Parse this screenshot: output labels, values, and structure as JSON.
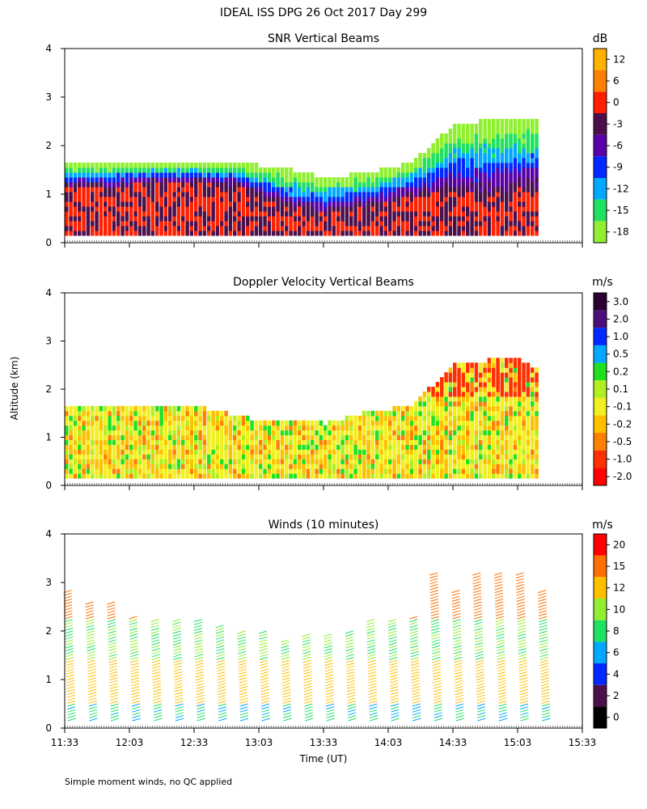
{
  "figure": {
    "title": "IDEAL ISS DPG  26 Oct 2017 Day 299",
    "ylabel": "Altitude (km)",
    "xlabel": "Time (UT)",
    "footnote": "Simple moment winds, no QC applied"
  },
  "chart_data": [
    {
      "type": "heatmap",
      "title": "SNR Vertical Beams",
      "ylabel": "Altitude (km)",
      "ylim": [
        0,
        4
      ],
      "yticks": [
        "0",
        "1",
        "2",
        "3",
        "4"
      ],
      "colorbar": {
        "unit": "dB",
        "labels": [
          "12",
          "6",
          "0",
          "-3",
          "-6",
          "-9",
          "-12",
          "-15",
          "-18"
        ],
        "colors": [
          "#ffb300",
          "#ff8000",
          "#ff2000",
          "#4b0f4b",
          "#5a00a8",
          "#0028ff",
          "#00a8ff",
          "#20e060",
          "#90f030"
        ]
      },
      "profiles": [
        {
          "time": "11:33",
          "top": 1.6,
          "core": 1.1
        },
        {
          "time": "11:53",
          "top": 1.6,
          "core": 1.1
        },
        {
          "time": "12:13",
          "top": 1.6,
          "core": 1.2
        },
        {
          "time": "12:33",
          "top": 1.6,
          "core": 1.2
        },
        {
          "time": "12:53",
          "top": 1.6,
          "core": 1.1
        },
        {
          "time": "13:13",
          "top": 1.5,
          "core": 0.7
        },
        {
          "time": "13:33",
          "top": 1.3,
          "core": 0.6
        },
        {
          "time": "13:53",
          "top": 1.4,
          "core": 0.7
        },
        {
          "time": "14:13",
          "top": 1.6,
          "core": 0.9
        },
        {
          "time": "14:33",
          "top": 2.4,
          "core": 1.0
        },
        {
          "time": "14:53",
          "top": 2.5,
          "core": 1.0
        },
        {
          "time": "15:13",
          "top": 2.5,
          "core": 1.1
        }
      ]
    },
    {
      "type": "heatmap",
      "title": "Doppler Velocity Vertical Beams",
      "ylabel": "Altitude (km)",
      "ylim": [
        0,
        4
      ],
      "yticks": [
        "0",
        "1",
        "2",
        "3",
        "4"
      ],
      "colorbar": {
        "unit": "m/s",
        "labels": [
          "3.0",
          "2.0",
          "1.0",
          "0.5",
          "0.2",
          "0.1",
          "-0.1",
          "-0.2",
          "-0.5",
          "-1.0",
          "-2.0"
        ],
        "colors": [
          "#2b0033",
          "#4b0f7b",
          "#0028ff",
          "#00a8ff",
          "#20e020",
          "#b0f020",
          "#f0f020",
          "#ffc000",
          "#ff8000",
          "#ff3000",
          "#ff0000"
        ]
      },
      "profiles": [
        {
          "time": "11:33",
          "top": 1.65
        },
        {
          "time": "12:03",
          "top": 1.65
        },
        {
          "time": "12:33",
          "top": 1.6
        },
        {
          "time": "13:03",
          "top": 1.3
        },
        {
          "time": "13:33",
          "top": 1.25
        },
        {
          "time": "13:53",
          "top": 1.5
        },
        {
          "time": "14:13",
          "top": 1.6
        },
        {
          "time": "14:33",
          "top": 2.5
        },
        {
          "time": "15:03",
          "top": 2.6
        },
        {
          "time": "15:13",
          "top": 2.3
        }
      ]
    },
    {
      "type": "scatter",
      "title": "Winds (10 minutes)",
      "ylabel": "Altitude (km)",
      "xlabel": "Time (UT)",
      "ylim": [
        0,
        4
      ],
      "yticks": [
        "0",
        "1",
        "2",
        "3",
        "4"
      ],
      "xticks": [
        "11:33",
        "12:03",
        "12:33",
        "13:03",
        "13:33",
        "14:03",
        "14:33",
        "15:03",
        "15:33"
      ],
      "colorbar": {
        "unit": "m/s",
        "labels": [
          "20",
          "15",
          "12",
          "10",
          "8",
          "6",
          "4",
          "2",
          "0"
        ],
        "colors": [
          "#ff0000",
          "#ff7000",
          "#ffc000",
          "#90f030",
          "#20e060",
          "#00a8ff",
          "#0028ff",
          "#4b0f4b",
          "#000000"
        ]
      },
      "profiles": [
        {
          "time": "11:33",
          "top": 2.8
        },
        {
          "time": "11:43",
          "top": 2.6
        },
        {
          "time": "11:53",
          "top": 2.6
        },
        {
          "time": "12:03",
          "top": 2.3
        },
        {
          "time": "12:13",
          "top": 2.2
        },
        {
          "time": "12:23",
          "top": 2.2
        },
        {
          "time": "12:33",
          "top": 2.2
        },
        {
          "time": "12:43",
          "top": 2.1
        },
        {
          "time": "12:53",
          "top": 2.0
        },
        {
          "time": "13:03",
          "top": 2.0
        },
        {
          "time": "13:13",
          "top": 1.8
        },
        {
          "time": "13:23",
          "top": 1.9
        },
        {
          "time": "13:33",
          "top": 1.9
        },
        {
          "time": "13:43",
          "top": 2.0
        },
        {
          "time": "13:53",
          "top": 2.2
        },
        {
          "time": "14:03",
          "top": 2.2
        },
        {
          "time": "14:13",
          "top": 2.3
        },
        {
          "time": "14:23",
          "top": 3.2
        },
        {
          "time": "14:33",
          "top": 2.8
        },
        {
          "time": "14:43",
          "top": 3.2
        },
        {
          "time": "14:53",
          "top": 3.2
        },
        {
          "time": "15:03",
          "top": 3.2
        },
        {
          "time": "15:13",
          "top": 2.8
        }
      ]
    }
  ]
}
